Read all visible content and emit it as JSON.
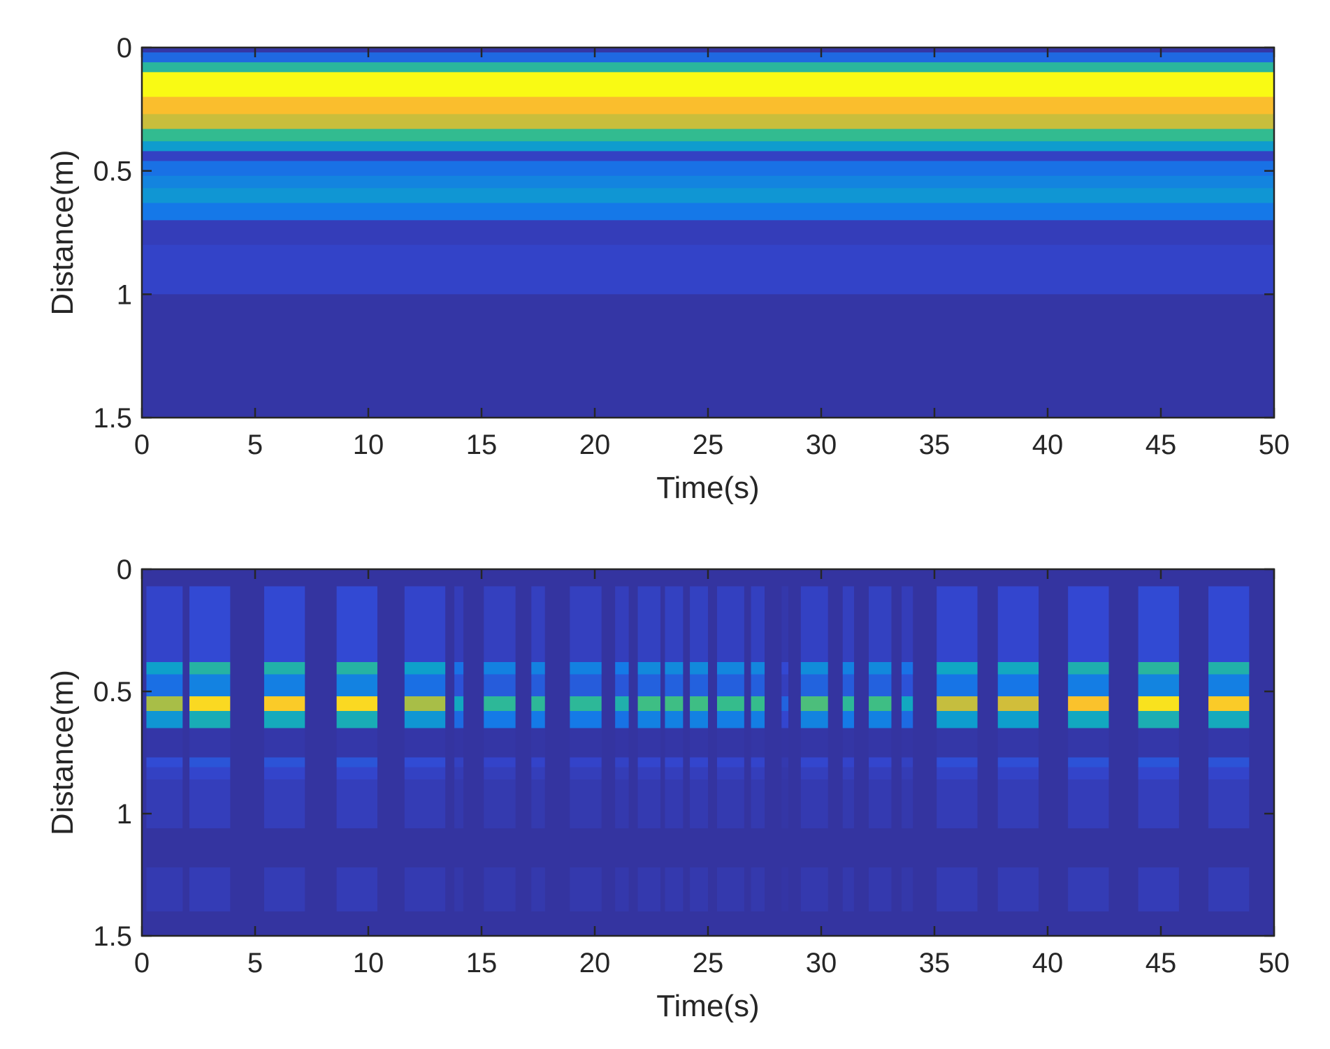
{
  "chart_data": [
    {
      "type": "heatmap",
      "title": "",
      "xlabel": "Time(s)",
      "ylabel": "Distance(m)",
      "xlim": [
        0,
        50
      ],
      "ylim": [
        0,
        1.5
      ],
      "y_reversed": true,
      "grid": false,
      "colormap": "parula",
      "x_ticks": [
        0,
        5,
        10,
        15,
        20,
        25,
        30,
        35,
        40,
        45,
        50
      ],
      "x_tick_labels": [
        "0",
        "5",
        "10",
        "15",
        "20",
        "25",
        "30",
        "35",
        "40",
        "45",
        "50"
      ],
      "y_ticks": [
        0,
        0.5,
        1,
        1.5
      ],
      "y_tick_labels": [
        "0",
        "0.5",
        "1",
        "1.5"
      ],
      "bands": [
        {
          "y0": 0.0,
          "y1": 0.02,
          "level": 0.06
        },
        {
          "y0": 0.02,
          "y1": 0.06,
          "level": 0.25
        },
        {
          "y0": 0.06,
          "y1": 0.1,
          "level": 0.55
        },
        {
          "y0": 0.1,
          "y1": 0.2,
          "level": 1.0
        },
        {
          "y0": 0.2,
          "y1": 0.27,
          "level": 0.88
        },
        {
          "y0": 0.27,
          "y1": 0.33,
          "level": 0.8
        },
        {
          "y0": 0.33,
          "y1": 0.38,
          "level": 0.58
        },
        {
          "y0": 0.38,
          "y1": 0.42,
          "level": 0.42
        },
        {
          "y0": 0.42,
          "y1": 0.46,
          "level": 0.12
        },
        {
          "y0": 0.46,
          "y1": 0.52,
          "level": 0.28
        },
        {
          "y0": 0.52,
          "y1": 0.57,
          "level": 0.34
        },
        {
          "y0": 0.57,
          "y1": 0.63,
          "level": 0.4
        },
        {
          "y0": 0.63,
          "y1": 0.7,
          "level": 0.3
        },
        {
          "y0": 0.7,
          "y1": 0.8,
          "level": 0.1
        },
        {
          "y0": 0.8,
          "y1": 1.0,
          "level": 0.13
        },
        {
          "y0": 1.0,
          "y1": 1.5,
          "level": 0.06
        }
      ],
      "bursts": []
    },
    {
      "type": "heatmap",
      "title": "",
      "xlabel": "Time(s)",
      "ylabel": "Distance(m)",
      "xlim": [
        0,
        50
      ],
      "ylim": [
        0,
        1.5
      ],
      "y_reversed": true,
      "grid": false,
      "colormap": "parula",
      "x_ticks": [
        0,
        5,
        10,
        15,
        20,
        25,
        30,
        35,
        40,
        45,
        50
      ],
      "x_tick_labels": [
        "0",
        "5",
        "10",
        "15",
        "20",
        "25",
        "30",
        "35",
        "40",
        "45",
        "50"
      ],
      "y_ticks": [
        0,
        0.5,
        1,
        1.5
      ],
      "y_tick_labels": [
        "0",
        "0.5",
        "1",
        "1.5"
      ],
      "bands": [
        {
          "y0": 0.0,
          "y1": 1.5,
          "level": 0.05
        }
      ],
      "bursts": [
        {
          "t": 1.0,
          "w": 1.6,
          "amp": 0.75
        },
        {
          "t": 3.0,
          "w": 1.8,
          "amp": 0.95
        },
        {
          "t": 6.3,
          "w": 1.8,
          "amp": 0.92
        },
        {
          "t": 9.5,
          "w": 1.8,
          "amp": 0.95
        },
        {
          "t": 12.5,
          "w": 1.8,
          "amp": 0.75
        },
        {
          "t": 14.0,
          "w": 0.4,
          "amp": 0.45
        },
        {
          "t": 15.8,
          "w": 1.4,
          "amp": 0.55
        },
        {
          "t": 17.5,
          "w": 0.6,
          "amp": 0.55
        },
        {
          "t": 19.6,
          "w": 1.4,
          "amp": 0.55
        },
        {
          "t": 21.2,
          "w": 0.6,
          "amp": 0.5
        },
        {
          "t": 22.4,
          "w": 1.0,
          "amp": 0.6
        },
        {
          "t": 23.5,
          "w": 0.8,
          "amp": 0.6
        },
        {
          "t": 24.6,
          "w": 0.8,
          "amp": 0.6
        },
        {
          "t": 26.0,
          "w": 1.2,
          "amp": 0.58
        },
        {
          "t": 27.2,
          "w": 0.6,
          "amp": 0.58
        },
        {
          "t": 28.4,
          "w": 0.3,
          "amp": 0.2
        },
        {
          "t": 29.7,
          "w": 1.2,
          "amp": 0.62
        },
        {
          "t": 31.2,
          "w": 0.5,
          "amp": 0.55
        },
        {
          "t": 32.6,
          "w": 1.0,
          "amp": 0.6
        },
        {
          "t": 33.8,
          "w": 0.5,
          "amp": 0.45
        },
        {
          "t": 36.0,
          "w": 1.8,
          "amp": 0.8
        },
        {
          "t": 38.7,
          "w": 1.8,
          "amp": 0.82
        },
        {
          "t": 41.8,
          "w": 1.8,
          "amp": 0.9
        },
        {
          "t": 44.9,
          "w": 1.8,
          "amp": 0.97
        },
        {
          "t": 48.0,
          "w": 1.8,
          "amp": 0.92
        }
      ],
      "burst_rows": [
        {
          "y0": 0.07,
          "y1": 0.38,
          "factor": 0.12
        },
        {
          "y0": 0.38,
          "y1": 0.43,
          "factor": 0.55
        },
        {
          "y0": 0.43,
          "y1": 0.52,
          "factor": 0.32
        },
        {
          "y0": 0.52,
          "y1": 0.58,
          "factor": 1.0
        },
        {
          "y0": 0.58,
          "y1": 0.65,
          "factor": 0.5
        },
        {
          "y0": 0.65,
          "y1": 0.77,
          "factor": 0.02
        },
        {
          "y0": 0.77,
          "y1": 0.81,
          "factor": 0.16
        },
        {
          "y0": 0.81,
          "y1": 0.86,
          "factor": 0.1
        },
        {
          "y0": 0.86,
          "y1": 1.06,
          "factor": 0.06
        },
        {
          "y0": 1.22,
          "y1": 1.4,
          "factor": 0.05
        }
      ]
    }
  ]
}
